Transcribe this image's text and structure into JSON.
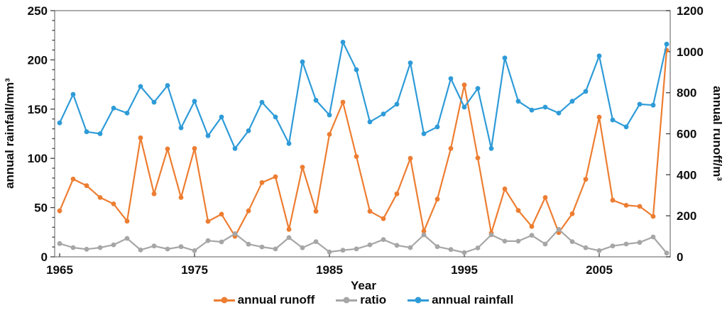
{
  "figure": {
    "xlabel": "Year",
    "left_axis_title": "annual rainfall/mm³",
    "right_axis_title": "annual runoff/m³"
  },
  "legend": {
    "items": [
      {
        "label": "annual runoff",
        "color": "#ED7D31"
      },
      {
        "label": "ratio",
        "color": "#A6A6A6"
      },
      {
        "label": "annual rainfall",
        "color": "#2E9BD8"
      }
    ]
  },
  "chart_data": {
    "type": "line",
    "title": "",
    "xlabel": "Year",
    "left_ylabel": "annual rainfall/mm³",
    "right_ylabel": "annual runoff/m³",
    "grid": false,
    "legend_position": "bottom",
    "left_ylim": [
      0,
      250
    ],
    "right_ylim": [
      0,
      1200
    ],
    "left_ticks": [
      0,
      50,
      100,
      150,
      200,
      250
    ],
    "left_minor_tick_step": 10,
    "right_ticks": [
      0,
      200,
      400,
      600,
      800,
      1000,
      1200
    ],
    "x_ticks": [
      1965,
      1975,
      1985,
      1995,
      2005
    ],
    "x": [
      1965,
      1966,
      1967,
      1968,
      1969,
      1970,
      1971,
      1972,
      1973,
      1974,
      1975,
      1976,
      1977,
      1978,
      1979,
      1980,
      1981,
      1982,
      1983,
      1984,
      1985,
      1986,
      1987,
      1988,
      1989,
      1990,
      1991,
      1992,
      1993,
      1994,
      1995,
      1996,
      1997,
      1998,
      1999,
      2000,
      2001,
      2002,
      2003,
      2004,
      2005,
      2006,
      2007,
      2008,
      2009,
      2010
    ],
    "series": [
      {
        "name": "annual runoff",
        "axis": "right",
        "color": "#ED7D31",
        "values": [
          224,
          379,
          347,
          289,
          258,
          174,
          580,
          307,
          526,
          289,
          528,
          173,
          208,
          100,
          224,
          362,
          390,
          134,
          437,
          222,
          597,
          754,
          489,
          222,
          186,
          307,
          480,
          125,
          281,
          528,
          838,
          482,
          116,
          331,
          226,
          148,
          289,
          118,
          210,
          378,
          681,
          276,
          251,
          246,
          197,
          1007
        ]
      },
      {
        "name": "ratio",
        "axis": "left",
        "color": "#A6A6A6",
        "values": [
          13.5,
          9.4,
          7.7,
          9.4,
          12.2,
          18.7,
          7.0,
          11.0,
          7.9,
          10.3,
          6.3,
          16.4,
          15.1,
          23.5,
          12.8,
          10.0,
          8.0,
          19.5,
          9.2,
          15.4,
          5.0,
          6.7,
          8.1,
          12.2,
          17.5,
          11.7,
          9.4,
          22.3,
          10.3,
          7.4,
          4.3,
          9.0,
          22.3,
          15.9,
          15.9,
          21.8,
          13.0,
          27.9,
          15.4,
          9.2,
          6.3,
          11.0,
          13.0,
          14.6,
          20.2,
          3.8
        ]
      },
      {
        "name": "annual rainfall",
        "axis": "left",
        "color": "#2E9BD8",
        "values": [
          136,
          165,
          127,
          125,
          151,
          146,
          173,
          157,
          174,
          131,
          158,
          123,
          142,
          110,
          128,
          157,
          142,
          115,
          198,
          159,
          144,
          218,
          190,
          137,
          145,
          155,
          197,
          125,
          132,
          181,
          152,
          171,
          110,
          202,
          158,
          149,
          152,
          146,
          158,
          168,
          204,
          139,
          132,
          155,
          154,
          216
        ]
      }
    ]
  }
}
